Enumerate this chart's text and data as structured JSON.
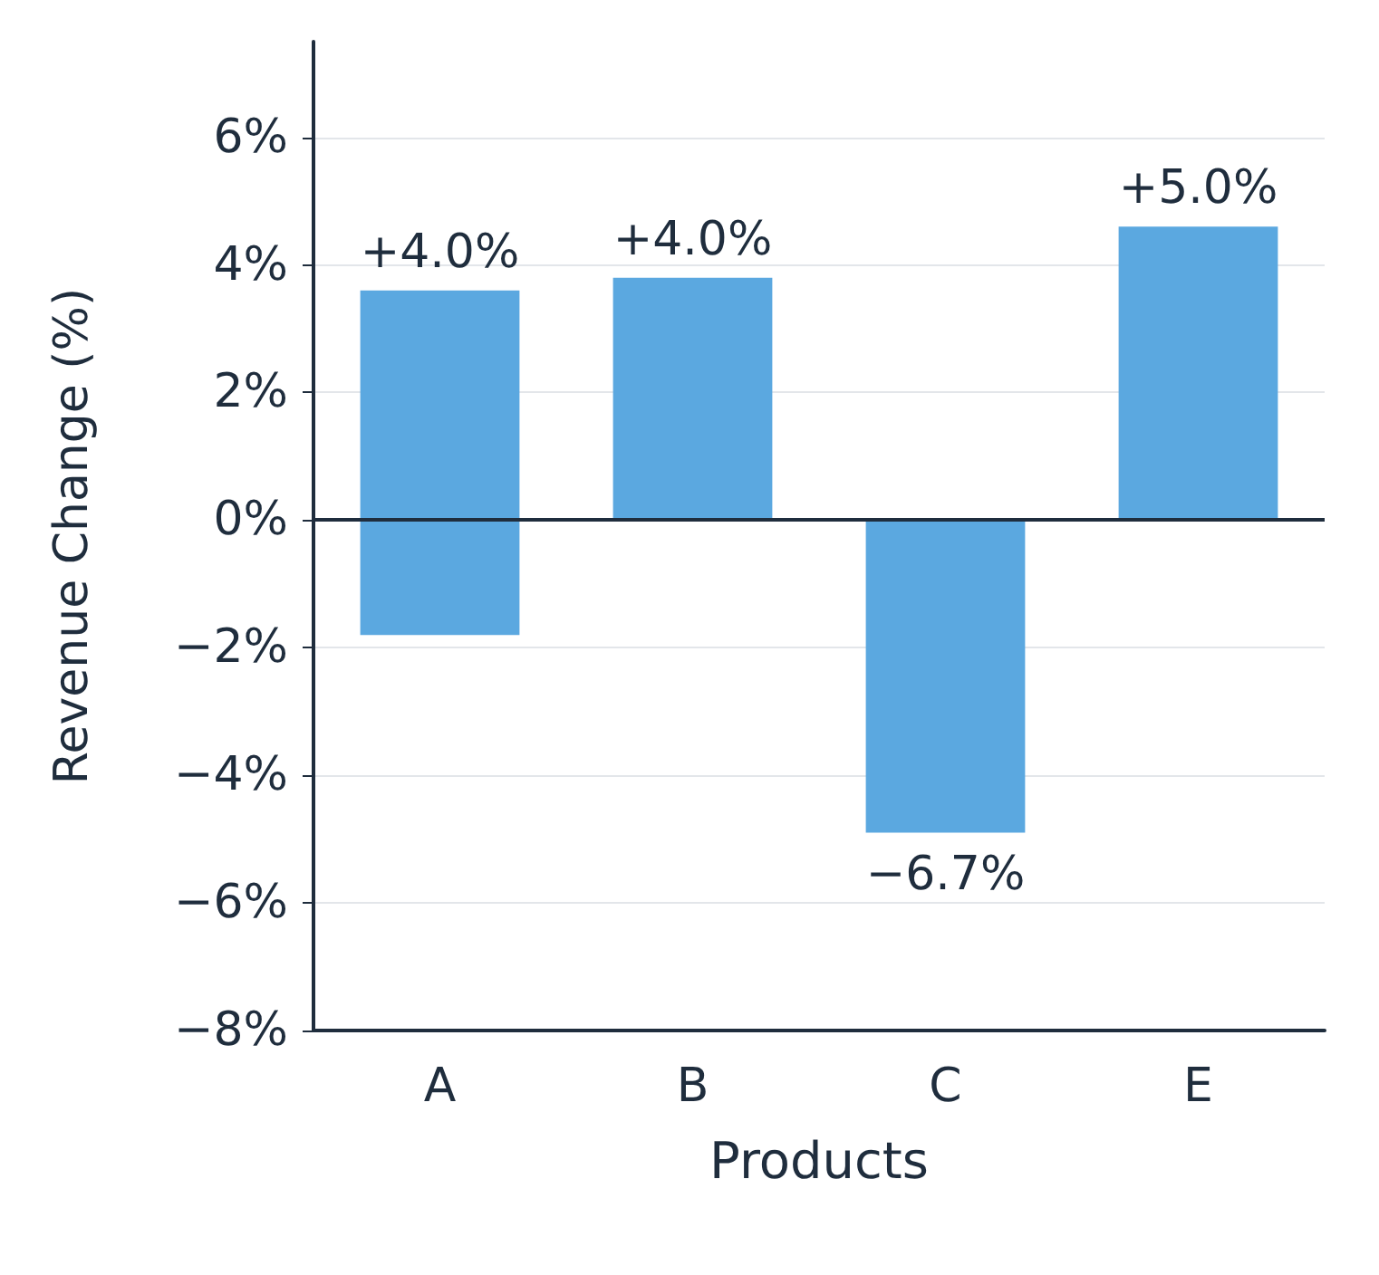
{
  "chart_data": {
    "type": "bar",
    "xlabel": "Products",
    "ylabel": "Revenue Change (%)",
    "categories": [
      "A",
      "B",
      "C",
      "E"
    ],
    "values": [
      5.4,
      3.8,
      -4.9,
      4.6
    ],
    "base": [
      -1.8,
      0,
      0,
      0
    ],
    "annotations": [
      {
        "text": "+4.0%",
        "x": "A",
        "y": 3.6
      },
      {
        "text": "+4.0%",
        "x": "B",
        "y": 3.8
      },
      {
        "text": "−6.7%",
        "x": "C",
        "y": -4.9
      },
      {
        "text": "+5.0%",
        "x": "E",
        "y": 4.6
      }
    ],
    "color": "#5ba8e0",
    "ylim": [
      -8,
      7.5
    ],
    "yticks": [
      {
        "value": -8,
        "label": "−8%"
      },
      {
        "value": -6,
        "label": "−6%"
      },
      {
        "value": -4,
        "label": "−4%"
      },
      {
        "value": -2,
        "label": "−2%"
      },
      {
        "value": 0,
        "label": "0%"
      },
      {
        "value": 2,
        "label": "2%"
      },
      {
        "value": 4,
        "label": "4%"
      },
      {
        "value": 6,
        "label": "6%"
      }
    ],
    "grid": "y",
    "ref_lines": [
      {
        "axis": "y",
        "value": 0,
        "color": "#1f2d3d"
      }
    ]
  }
}
